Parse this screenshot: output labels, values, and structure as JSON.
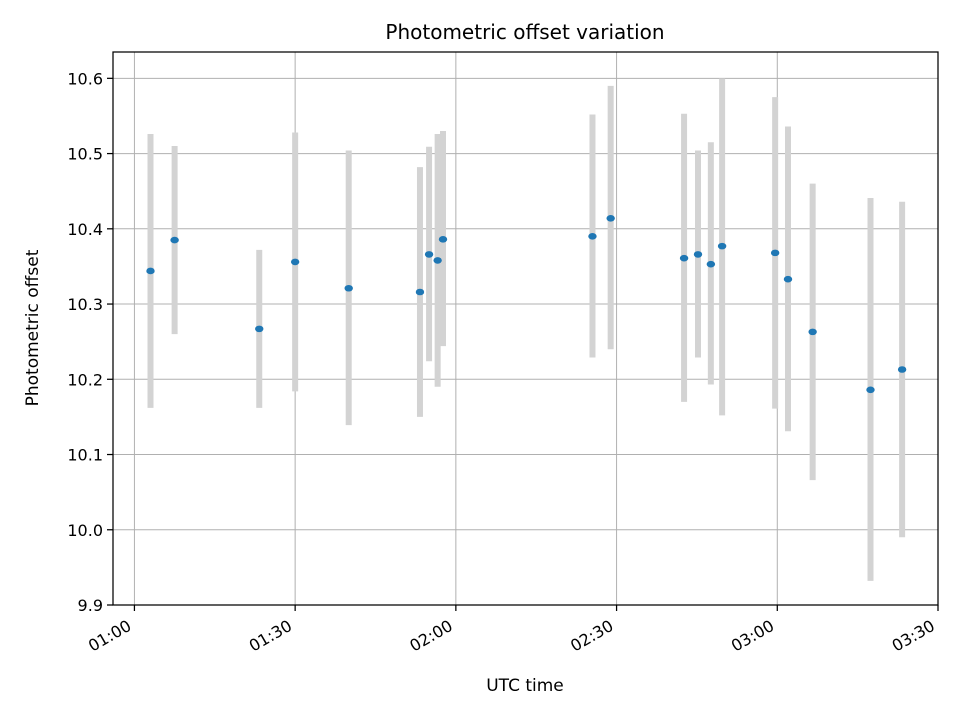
{
  "chart_data": {
    "type": "scatter",
    "title": "Photometric offset variation",
    "xlabel": "UTC time",
    "ylabel": "Photometric offset",
    "xlim": [
      "00:56",
      "03:30"
    ],
    "ylim": [
      9.9,
      10.635
    ],
    "x_ticks": [
      "01:00",
      "01:30",
      "02:00",
      "02:30",
      "03:00",
      "03:30"
    ],
    "y_ticks": [
      "9.9",
      "10.0",
      "10.1",
      "10.2",
      "10.3",
      "10.4",
      "10.5",
      "10.6"
    ],
    "grid": true,
    "colors": {
      "point": "#1f77b4",
      "errorbar": "#d3d3d3",
      "grid": "#b0b0b0"
    },
    "points": [
      {
        "x": "01:03",
        "y": 10.344,
        "ymin": 10.162,
        "ymax": 10.526
      },
      {
        "x": "01:07.5",
        "y": 10.385,
        "ymin": 10.26,
        "ymax": 10.51
      },
      {
        "x": "01:23.3",
        "y": 10.267,
        "ymin": 10.162,
        "ymax": 10.372
      },
      {
        "x": "01:30",
        "y": 10.356,
        "ymin": 10.184,
        "ymax": 10.528
      },
      {
        "x": "01:40",
        "y": 10.321,
        "ymin": 10.139,
        "ymax": 10.504
      },
      {
        "x": "01:53.3",
        "y": 10.316,
        "ymin": 10.15,
        "ymax": 10.482
      },
      {
        "x": "01:55",
        "y": 10.366,
        "ymin": 10.224,
        "ymax": 10.509
      },
      {
        "x": "01:56.6",
        "y": 10.358,
        "ymin": 10.19,
        "ymax": 10.526
      },
      {
        "x": "01:57.6",
        "y": 10.386,
        "ymin": 10.244,
        "ymax": 10.53
      },
      {
        "x": "02:25.5",
        "y": 10.39,
        "ymin": 10.229,
        "ymax": 10.552
      },
      {
        "x": "02:28.9",
        "y": 10.414,
        "ymin": 10.24,
        "ymax": 10.59
      },
      {
        "x": "02:42.6",
        "y": 10.361,
        "ymin": 10.17,
        "ymax": 10.553
      },
      {
        "x": "02:45.2",
        "y": 10.366,
        "ymin": 10.229,
        "ymax": 10.504
      },
      {
        "x": "02:47.6",
        "y": 10.353,
        "ymin": 10.193,
        "ymax": 10.515
      },
      {
        "x": "02:49.7",
        "y": 10.377,
        "ymin": 10.152,
        "ymax": 10.6
      },
      {
        "x": "02:59.6",
        "y": 10.368,
        "ymin": 10.161,
        "ymax": 10.575
      },
      {
        "x": "03:02",
        "y": 10.333,
        "ymin": 10.131,
        "ymax": 10.536
      },
      {
        "x": "03:06.6",
        "y": 10.263,
        "ymin": 10.066,
        "ymax": 10.46
      },
      {
        "x": "03:17.4",
        "y": 10.186,
        "ymin": 9.932,
        "ymax": 10.441
      },
      {
        "x": "03:23.3",
        "y": 10.213,
        "ymin": 9.99,
        "ymax": 10.436
      }
    ]
  }
}
